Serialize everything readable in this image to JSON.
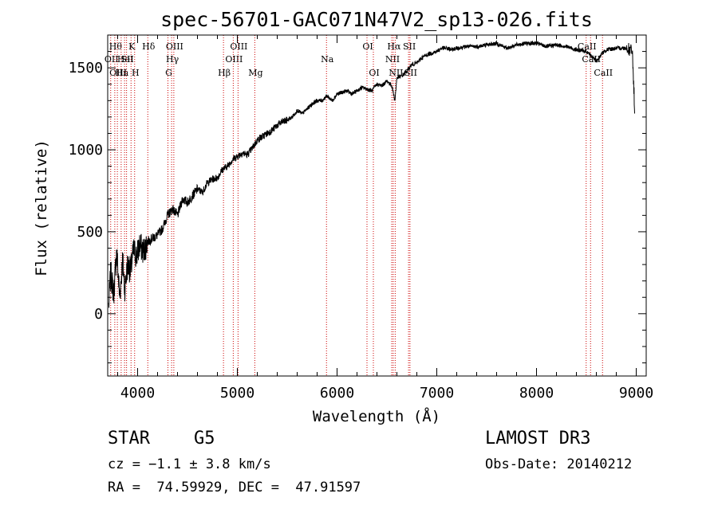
{
  "chart_data": {
    "type": "line",
    "title": "spec-56701-GAC071N47V2_sp13-026.fits",
    "xlabel": "Wavelength (Å)",
    "ylabel": "Flux (relative)",
    "xlim": [
      3700,
      9100
    ],
    "ylim": [
      -380,
      1700
    ],
    "xticks": [
      4000,
      5000,
      6000,
      7000,
      8000,
      9000
    ],
    "yticks": [
      0,
      500,
      1000,
      1500
    ],
    "xtick_labels": [
      "4000",
      "5000",
      "6000",
      "7000",
      "8000",
      "9000"
    ],
    "ytick_labels": [
      "0",
      "500",
      "1000",
      "1500"
    ],
    "grid": false,
    "series": [
      {
        "name": "flux",
        "x": [
          3710,
          3730,
          3760,
          3790,
          3820,
          3850,
          3870,
          3900,
          3930,
          3960,
          3990,
          4020,
          4060,
          4100,
          4150,
          4200,
          4250,
          4300,
          4350,
          4400,
          4450,
          4500,
          4550,
          4600,
          4650,
          4700,
          4750,
          4800,
          4850,
          4900,
          4950,
          5000,
          5050,
          5100,
          5150,
          5200,
          5250,
          5300,
          5350,
          5400,
          5450,
          5500,
          5550,
          5600,
          5650,
          5700,
          5750,
          5800,
          5850,
          5900,
          5950,
          6000,
          6050,
          6100,
          6150,
          6200,
          6250,
          6300,
          6350,
          6400,
          6450,
          6500,
          6550,
          6580,
          6600,
          6650,
          6700,
          6750,
          6800,
          6850,
          6900,
          6950,
          7000,
          7050,
          7100,
          7150,
          7200,
          7300,
          7400,
          7500,
          7600,
          7700,
          7800,
          7900,
          8000,
          8100,
          8200,
          8300,
          8400,
          8500,
          8540,
          8600,
          8660,
          8700,
          8800,
          8900,
          8960,
          8975,
          8985
        ],
        "values": [
          50,
          250,
          120,
          380,
          100,
          330,
          150,
          300,
          260,
          390,
          350,
          420,
          380,
          440,
          460,
          480,
          520,
          600,
          640,
          600,
          700,
          680,
          720,
          760,
          740,
          800,
          820,
          830,
          880,
          900,
          940,
          960,
          980,
          970,
          1010,
          1060,
          1080,
          1100,
          1120,
          1150,
          1170,
          1180,
          1200,
          1240,
          1220,
          1250,
          1280,
          1300,
          1300,
          1330,
          1300,
          1340,
          1350,
          1360,
          1340,
          1360,
          1380,
          1370,
          1360,
          1400,
          1390,
          1420,
          1390,
          1300,
          1440,
          1450,
          1480,
          1520,
          1530,
          1560,
          1580,
          1590,
          1600,
          1620,
          1620,
          1610,
          1620,
          1630,
          1630,
          1640,
          1650,
          1620,
          1640,
          1650,
          1650,
          1630,
          1640,
          1630,
          1610,
          1600,
          1580,
          1540,
          1590,
          1610,
          1620,
          1620,
          1600,
          1400,
          1180
        ]
      }
    ],
    "line_markers": [
      {
        "wave": 3730,
        "label": "OII",
        "row": 1
      },
      {
        "wave": 3771,
        "label": "Hθ",
        "row": 0
      },
      {
        "wave": 3797,
        "label": "OIII",
        "row": 2
      },
      {
        "wave": 3835,
        "label": "Hn",
        "row": 2
      },
      {
        "wave": 3869,
        "label": "HeI",
        "row": 1
      },
      {
        "wave": 3889,
        "label": "SII",
        "row": 1
      },
      {
        "wave": 3934,
        "label": "K",
        "row": 0
      },
      {
        "wave": 3970,
        "label": "H",
        "row": 2
      },
      {
        "wave": 4102,
        "label": "Hδ",
        "row": 0
      },
      {
        "wave": 4304,
        "label": "G",
        "row": 2
      },
      {
        "wave": 4341,
        "label": "Hγ",
        "row": 1
      },
      {
        "wave": 4363,
        "label": "OIII",
        "row": 0
      },
      {
        "wave": 4861,
        "label": "Hβ",
        "row": 2
      },
      {
        "wave": 4959,
        "label": "OIII",
        "row": 1
      },
      {
        "wave": 5007,
        "label": "OIII",
        "row": 0
      },
      {
        "wave": 5175,
        "label": "Mg",
        "row": 2
      },
      {
        "wave": 5894,
        "label": "Na",
        "row": 1
      },
      {
        "wave": 6300,
        "label": "OI",
        "row": 0
      },
      {
        "wave": 6364,
        "label": "OI",
        "row": 2
      },
      {
        "wave": 6548,
        "label": "NII",
        "row": 1
      },
      {
        "wave": 6563,
        "label": "Hα",
        "row": 0
      },
      {
        "wave": 6583,
        "label": "NII",
        "row": 2
      },
      {
        "wave": 6717,
        "label": "SII",
        "row": 0
      },
      {
        "wave": 6731,
        "label": "SII",
        "row": 2
      },
      {
        "wave": 8498,
        "label": "CaII",
        "row": 0
      },
      {
        "wave": 8542,
        "label": "CaII",
        "row": 1
      },
      {
        "wave": 8662,
        "label": "CaII",
        "row": 2
      }
    ],
    "colors": {
      "spectrum": "#000000",
      "marker": "#cc0000",
      "axes": "#000000"
    }
  },
  "info": {
    "object_class": "STAR",
    "subclass": "G5",
    "survey": "LAMOST DR3",
    "cz": "cz = −1.1 ± 3.8 km/s",
    "obs_date": "Obs-Date: 20140212",
    "coords": "RA =  74.59929, DEC =  47.91597"
  }
}
